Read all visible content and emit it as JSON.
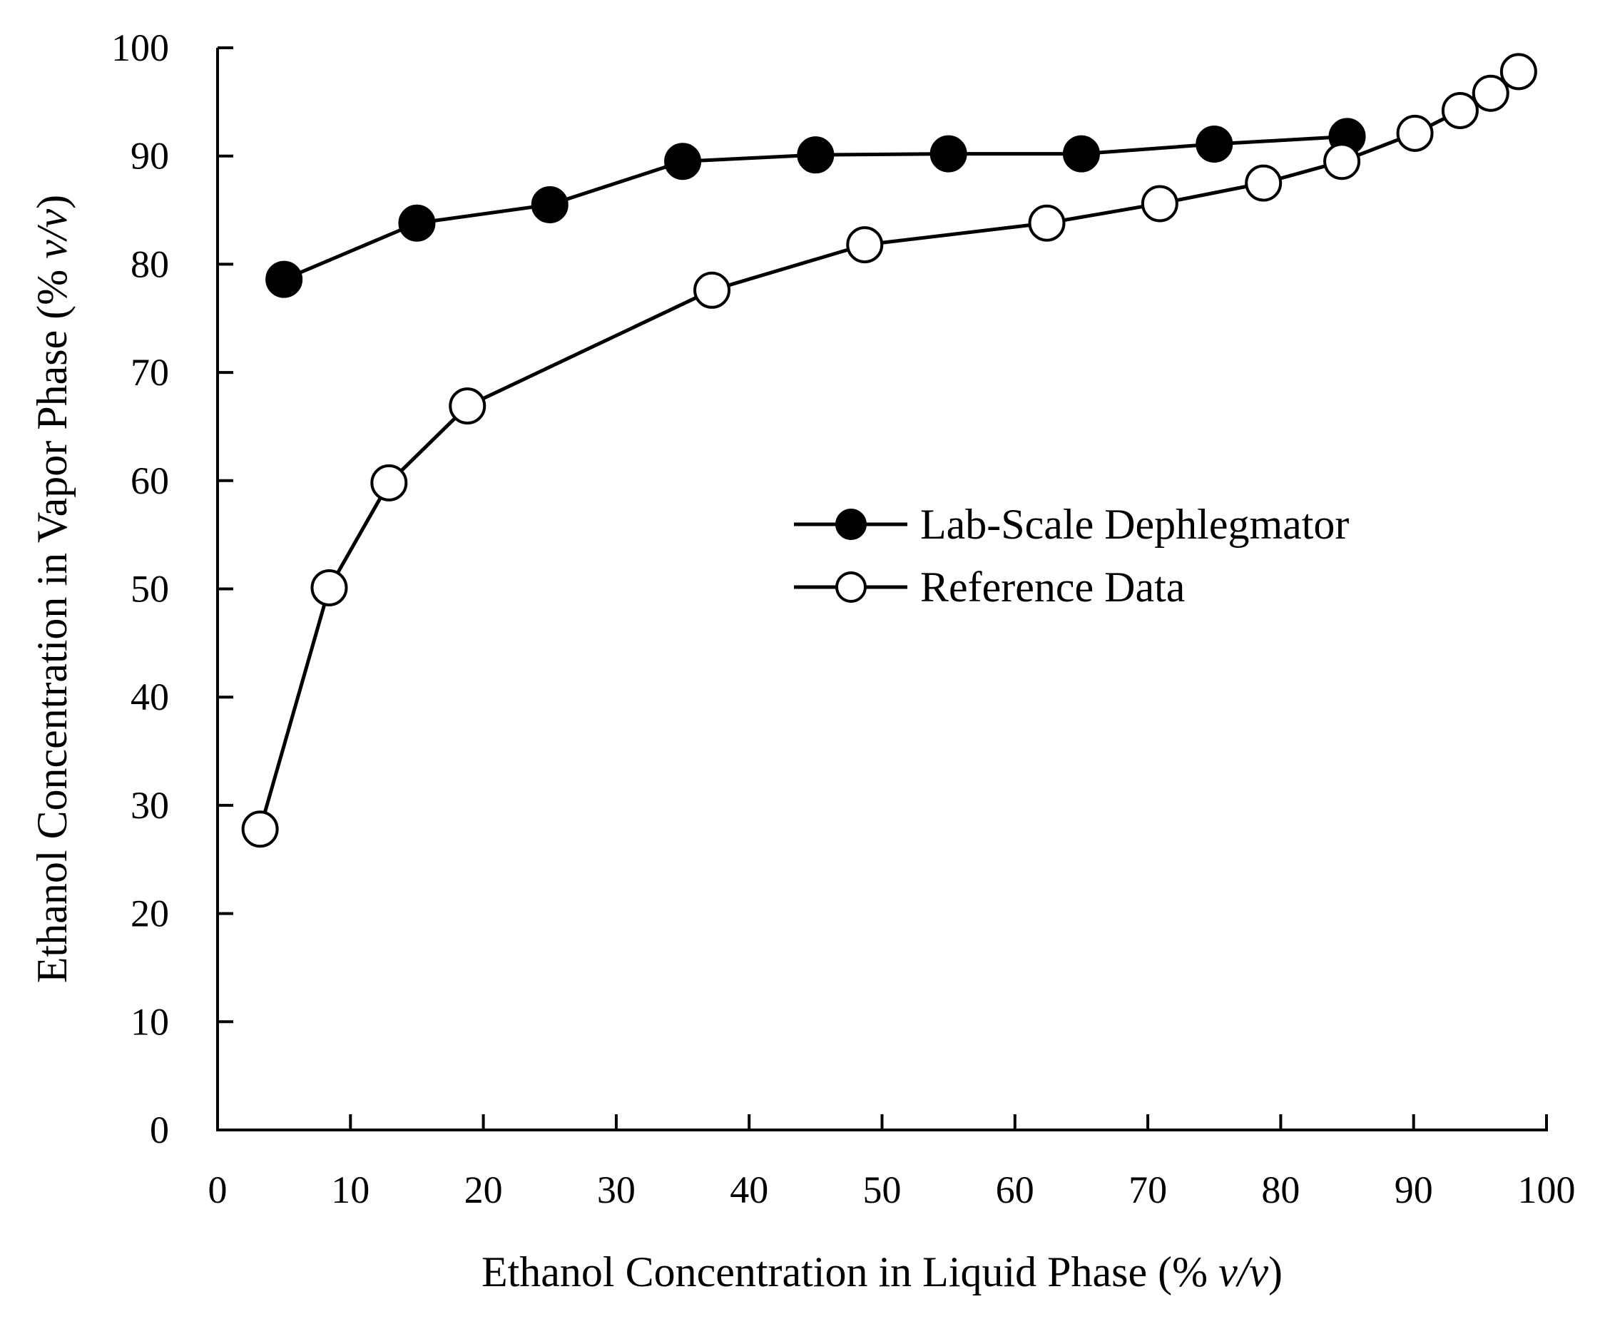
{
  "chart_data": {
    "type": "line",
    "title": "",
    "xlabel": "Ethanol Concentration in Liquid Phase (% v/v)",
    "xlabel_parts": {
      "prefix": "Ethanol Concentration in Liquid Phase (% ",
      "italic": "v/v",
      "suffix": ")"
    },
    "ylabel": "Ethanol Concentration in Vapor Phase (% v/v)",
    "ylabel_parts": {
      "prefix": "Ethanol Concentration in Vapor Phase (% ",
      "italic": "v/v",
      "suffix": ")"
    },
    "xlim": [
      0,
      100
    ],
    "ylim": [
      0,
      100
    ],
    "xticks": [
      0,
      10,
      20,
      30,
      40,
      50,
      60,
      70,
      80,
      90,
      100
    ],
    "yticks": [
      0,
      10,
      20,
      30,
      40,
      50,
      60,
      70,
      80,
      90,
      100
    ],
    "grid": false,
    "legend_position": "center-right",
    "series": [
      {
        "name": "Lab-Scale Dephlegmator",
        "marker": "filled-circle",
        "x": [
          5,
          15,
          25,
          35,
          45,
          55,
          65,
          75,
          85
        ],
        "y": [
          78.6,
          83.8,
          85.5,
          89.5,
          90.1,
          90.2,
          90.2,
          91.1,
          91.8
        ]
      },
      {
        "name": "Reference Data",
        "marker": "open-circle",
        "x": [
          3.2,
          8.4,
          12.9,
          18.8,
          37.2,
          48.7,
          62.4,
          70.9,
          78.7,
          84.6,
          90.1,
          93.5,
          95.8,
          97.9
        ],
        "y": [
          27.8,
          50.1,
          59.8,
          66.9,
          77.6,
          81.8,
          83.8,
          85.6,
          87.5,
          89.5,
          92.1,
          94.2,
          95.8,
          97.8
        ]
      }
    ]
  }
}
